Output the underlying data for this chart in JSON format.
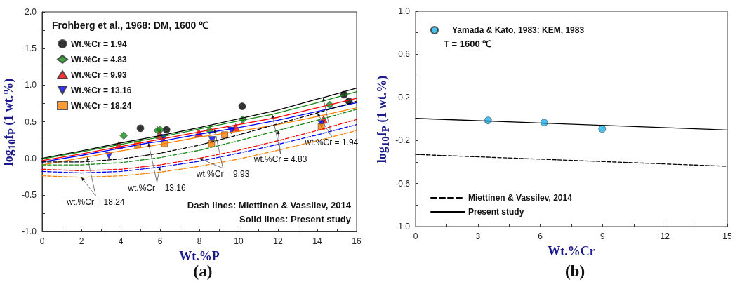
{
  "chart_data": [
    {
      "type": "scatter",
      "title": "(a)",
      "xlabel": "Wt.%P",
      "ylabel": "log$_{10}$f$_{P}$ (1 wt.%)",
      "legend_title": "Frohberg et al., 1968: DM, 1600 ℃",
      "legend": "top left",
      "xlim": [
        0,
        16
      ],
      "xticks": [
        0,
        {
          "value": 1,
          "label": null
        },
        2,
        {
          "value": 3,
          "label": null
        },
        4,
        {
          "value": 5,
          "label": null
        },
        6,
        {
          "value": 7,
          "label": null
        },
        8,
        {
          "value": 9,
          "label": null
        },
        10,
        {
          "value": 11,
          "label": null
        },
        12,
        {
          "value": 13,
          "label": null
        },
        14,
        {
          "value": 15,
          "label": null
        },
        16
      ],
      "ylim": [
        -1,
        2
      ],
      "yticks": [
        {
          "value": -1,
          "label": "-1.0"
        },
        {
          "value": -0.75,
          "label": null
        },
        {
          "value": -0.5,
          "label": "-0.5"
        },
        {
          "value": -0.25,
          "label": null
        },
        {
          "value": 0,
          "label": "0.0"
        },
        {
          "value": 0.25,
          "label": null
        },
        {
          "value": 0.5,
          "label": "0.5"
        },
        {
          "value": 0.75,
          "label": null
        },
        {
          "value": 1,
          "label": "1.0"
        },
        {
          "value": 1.25,
          "label": null
        },
        {
          "value": 1.5,
          "label": "1.5"
        },
        {
          "value": 1.75,
          "label": null
        },
        {
          "value": 2,
          "label": "2.0"
        }
      ],
      "series": [
        {
          "name": "Wt.%Cr = 1.94",
          "marker": "circle",
          "color": "#000000",
          "x": [
            5.0,
            6.33,
            10.18,
            15.36,
            15.61
          ],
          "values": [
            0.41,
            0.39,
            0.71,
            0.87,
            0.78
          ]
        },
        {
          "name": "Wt.%Cr = 4.83",
          "marker": "diamond",
          "color": "#138a13",
          "x": [
            4.15,
            5.88,
            6.01,
            8.53,
            10.21,
            14.63
          ],
          "values": [
            0.31,
            0.38,
            0.39,
            0.38,
            0.53,
            0.73
          ]
        },
        {
          "name": "Wt.%Cr = 9.93",
          "marker": "triangle",
          "color": "#ff0000",
          "x": [
            3.9,
            5.99,
            7.97,
            9.85,
            14.32
          ],
          "values": [
            0.18,
            0.32,
            0.35,
            0.42,
            0.53
          ]
        },
        {
          "name": "Wt.%Cr = 13.16",
          "marker": "triangle-down",
          "color": "#0000ff",
          "x": [
            3.4,
            6.18,
            8.65,
            9.63,
            14.21
          ],
          "values": [
            0.04,
            0.28,
            0.25,
            0.38,
            0.47
          ]
        },
        {
          "name": "Wt.%Cr = 18.24",
          "marker": "square",
          "color": "#ff8000",
          "x": [
            4.86,
            6.23,
            8.62,
            9.29,
            14.2
          ],
          "values": [
            0.19,
            0.2,
            0.2,
            0.32,
            0.43
          ]
        },
        {
          "type": "line",
          "marker": "none",
          "line_style": "solid",
          "color": "#000000",
          "x": [
            0,
            2,
            4,
            6,
            8,
            10,
            12,
            14,
            14.3,
            16
          ],
          "values": [
            0.0,
            0.1,
            0.21,
            0.31,
            0.42,
            0.54,
            0.66,
            0.81,
            0.83,
            0.96
          ]
        },
        {
          "type": "line",
          "marker": "none",
          "line_style": "solid",
          "color": "#138a13",
          "x": [
            0,
            2,
            4,
            6,
            8,
            10,
            11.7,
            14,
            16
          ],
          "values": [
            -0.01,
            0.09,
            0.19,
            0.29,
            0.4,
            0.51,
            0.6,
            0.76,
            0.91
          ]
        },
        {
          "type": "line",
          "marker": "none",
          "line_style": "solid",
          "color": "#ff0000",
          "x": [
            0,
            2,
            4,
            6,
            8,
            8.77,
            10,
            12,
            14,
            16
          ],
          "values": [
            -0.03,
            0.06,
            0.16,
            0.26,
            0.36,
            0.4,
            0.46,
            0.56,
            0.69,
            0.82
          ]
        },
        {
          "type": "line",
          "marker": "none",
          "line_style": "solid",
          "color": "#0000ff",
          "x": [
            0,
            2,
            4,
            5.41,
            6,
            8,
            10,
            12,
            14,
            16
          ],
          "values": [
            -0.05,
            0.04,
            0.14,
            0.21,
            0.23,
            0.33,
            0.42,
            0.52,
            0.64,
            0.76
          ]
        },
        {
          "type": "line",
          "marker": "none",
          "line_style": "solid",
          "color": "#ff8000",
          "x": [
            0,
            2.3,
            4,
            6,
            8,
            10,
            12,
            14,
            16
          ],
          "values": [
            -0.09,
            0.02,
            0.1,
            0.19,
            0.29,
            0.37,
            0.46,
            0.57,
            0.69
          ]
        },
        {
          "type": "line",
          "marker": "none",
          "line_style": "dashed",
          "color": "#000000",
          "x": [
            0,
            2,
            4,
            6,
            8,
            10,
            12,
            14,
            16
          ],
          "values": [
            -0.05,
            -0.05,
            -0.01,
            0.07,
            0.18,
            0.32,
            0.47,
            0.62,
            0.78
          ]
        },
        {
          "type": "line",
          "marker": "none",
          "line_style": "dashed",
          "color": "#138a13",
          "x": [
            0,
            2,
            4,
            6,
            8,
            10,
            12,
            14,
            16
          ],
          "values": [
            -0.09,
            -0.09,
            -0.06,
            0.01,
            0.11,
            0.24,
            0.38,
            0.52,
            0.67
          ]
        },
        {
          "type": "line",
          "marker": "none",
          "line_style": "dashed",
          "color": "#ff0000",
          "x": [
            0,
            2,
            4,
            6,
            8,
            10,
            12,
            14,
            16
          ],
          "values": [
            -0.15,
            -0.17,
            -0.15,
            -0.09,
            0.0,
            0.11,
            0.24,
            0.38,
            0.53
          ]
        },
        {
          "type": "line",
          "marker": "none",
          "line_style": "dashed",
          "color": "#0000ff",
          "x": [
            0,
            2,
            4,
            6,
            8,
            10,
            12,
            14,
            16
          ],
          "values": [
            -0.18,
            -0.2,
            -0.18,
            -0.12,
            -0.04,
            0.07,
            0.19,
            0.32,
            0.46
          ]
        },
        {
          "type": "line",
          "marker": "none",
          "line_style": "dashed",
          "color": "#ff8000",
          "x": [
            0,
            2,
            4,
            6,
            8,
            10,
            12,
            14,
            16
          ],
          "values": [
            -0.24,
            -0.26,
            -0.24,
            -0.19,
            -0.11,
            -0.01,
            0.11,
            0.24,
            0.38
          ]
        }
      ],
      "annotations": [
        {
          "text": "wt.%Cr = 1.94",
          "x": 14.3,
          "y": 0.83
        },
        {
          "text": "wt.%Cr = 4.83",
          "x": 11.7,
          "y": 0.6
        },
        {
          "text": "wt.%Cr = 9.93",
          "x": 8.77,
          "y": 0.4
        },
        {
          "text": "wt.%Cr = 13.16",
          "x": 5.41,
          "y": 0.21
        },
        {
          "text": "wt.%Cr = 18.24",
          "x": 2.3,
          "y": 0.02
        },
        "Dash lines: Miettinen & Vassilev, 2014",
        "Solid lines: Present study"
      ]
    },
    {
      "type": "scatter",
      "title": "(b)",
      "xlabel": "Wt.%Cr",
      "ylabel": "log$_{10}$f$_{P}$ (1 wt.%)",
      "legend": "left",
      "xlim": [
        0,
        15
      ],
      "xticks": [
        0,
        {
          "value": 1.5,
          "label": null
        },
        3,
        {
          "value": 4.5,
          "label": null
        },
        6,
        {
          "value": 7.5,
          "label": null
        },
        9,
        {
          "value": 10.5,
          "label": null
        },
        12,
        {
          "value": 13.5,
          "label": null
        },
        15
      ],
      "ylim": [
        -1,
        1
      ],
      "yticks": [
        {
          "value": -1,
          "label": "-1.0"
        },
        {
          "value": -0.8,
          "label": null
        },
        -0.6,
        {
          "value": -0.4,
          "label": null
        },
        -0.2,
        {
          "value": 0,
          "label": null
        },
        0.2,
        {
          "value": 0.4,
          "label": null
        },
        0.6,
        {
          "value": 0.8,
          "label": null
        },
        {
          "value": 1,
          "label": "1.0"
        }
      ],
      "series": [
        {
          "name": "Yamada & Kato, 1983: KEM, 1983",
          "marker": "circle",
          "color": "#1ab2ec",
          "x": [
            3.49,
            6.19,
            8.98
          ],
          "values": [
            -0.014,
            -0.034,
            -0.093
          ]
        },
        {
          "name": "Miettinen & Vassilev, 2014",
          "type": "line",
          "marker": "none",
          "line_style": "dashed",
          "color": "#000000",
          "x": [
            0,
            15
          ],
          "values": [
            -0.33,
            -0.44
          ]
        },
        {
          "name": "Present study",
          "type": "line",
          "marker": "none",
          "line_style": "solid",
          "color": "#000000",
          "x": [
            0,
            15
          ],
          "values": [
            0.005,
            -0.103
          ]
        }
      ],
      "annotations": [
        "T = 1600 ℃"
      ]
    }
  ]
}
